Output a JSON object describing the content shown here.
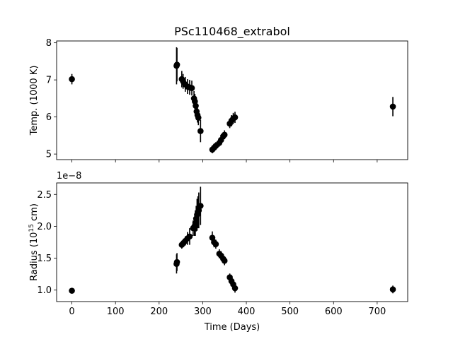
{
  "chart_data": {
    "type": "scatter",
    "title": "PSc110468_extrabol",
    "xlabel": "Time (Days)",
    "xlim": [
      -35,
      770
    ],
    "xticks": [
      0,
      100,
      200,
      300,
      400,
      500,
      600,
      700
    ],
    "panels": [
      {
        "id": "temperature",
        "ylabel_prefix": "Temp. (1000 K)",
        "ylabel_parts": null,
        "ylim": [
          4.85,
          8.05
        ],
        "yticks": [
          5,
          6,
          7,
          8
        ],
        "tick_decimals": 0,
        "offset_text": "",
        "color": "#000000",
        "points": [
          {
            "x": 0,
            "y": 7.02,
            "err": 0.14
          },
          {
            "x": 240,
            "y": 7.38,
            "err": 0.5
          },
          {
            "x": 241,
            "y": 7.41,
            "err": 0.45
          },
          {
            "x": 252,
            "y": 7.02,
            "err": 0.22
          },
          {
            "x": 255,
            "y": 6.96,
            "err": 0.2
          },
          {
            "x": 260,
            "y": 6.88,
            "err": 0.2
          },
          {
            "x": 265,
            "y": 6.82,
            "err": 0.2
          },
          {
            "x": 270,
            "y": 6.8,
            "err": 0.2
          },
          {
            "x": 275,
            "y": 6.78,
            "err": 0.2
          },
          {
            "x": 280,
            "y": 6.5,
            "err": 0.2
          },
          {
            "x": 282,
            "y": 6.42,
            "err": 0.2
          },
          {
            "x": 284,
            "y": 6.3,
            "err": 0.2
          },
          {
            "x": 286,
            "y": 6.15,
            "err": 0.2
          },
          {
            "x": 288,
            "y": 6.05,
            "err": 0.2
          },
          {
            "x": 290,
            "y": 5.98,
            "err": 0.2
          },
          {
            "x": 295,
            "y": 5.62,
            "err": 0.3
          },
          {
            "x": 322,
            "y": 5.12,
            "err": 0.1
          },
          {
            "x": 326,
            "y": 5.17,
            "err": 0.1
          },
          {
            "x": 330,
            "y": 5.22,
            "err": 0.1
          },
          {
            "x": 338,
            "y": 5.3,
            "err": 0.1
          },
          {
            "x": 342,
            "y": 5.38,
            "err": 0.1
          },
          {
            "x": 347,
            "y": 5.48,
            "err": 0.1
          },
          {
            "x": 350,
            "y": 5.52,
            "err": 0.12
          },
          {
            "x": 362,
            "y": 5.82,
            "err": 0.12
          },
          {
            "x": 366,
            "y": 5.9,
            "err": 0.15
          },
          {
            "x": 370,
            "y": 5.96,
            "err": 0.15
          },
          {
            "x": 374,
            "y": 5.99,
            "err": 0.15
          },
          {
            "x": 736,
            "y": 6.28,
            "err": 0.26
          }
        ]
      },
      {
        "id": "radius",
        "ylabel_prefix": "Radius (10",
        "ylabel_parts": {
          "sup": "15",
          "suffix": " cm)"
        },
        "ylim": [
          0.82,
          2.68
        ],
        "yticks": [
          1.0,
          1.5,
          2.0,
          2.5
        ],
        "tick_decimals": 1,
        "offset_text": "1e−8",
        "color": "#000000",
        "points": [
          {
            "x": 0,
            "y": 0.99,
            "err": 0.03
          },
          {
            "x": 240,
            "y": 1.41,
            "err": 0.15
          },
          {
            "x": 241,
            "y": 1.44,
            "err": 0.14
          },
          {
            "x": 252,
            "y": 1.71,
            "err": 0.06
          },
          {
            "x": 256,
            "y": 1.74,
            "err": 0.06
          },
          {
            "x": 260,
            "y": 1.77,
            "err": 0.07
          },
          {
            "x": 265,
            "y": 1.81,
            "err": 0.1
          },
          {
            "x": 270,
            "y": 1.84,
            "err": 0.13
          },
          {
            "x": 278,
            "y": 1.97,
            "err": 0.12
          },
          {
            "x": 281,
            "y": 2.0,
            "err": 0.15
          },
          {
            "x": 283,
            "y": 2.05,
            "err": 0.2
          },
          {
            "x": 285,
            "y": 2.12,
            "err": 0.2
          },
          {
            "x": 287,
            "y": 2.18,
            "err": 0.25
          },
          {
            "x": 289,
            "y": 2.22,
            "err": 0.25
          },
          {
            "x": 291,
            "y": 2.25,
            "err": 0.28
          },
          {
            "x": 295,
            "y": 2.32,
            "err": 0.3
          },
          {
            "x": 322,
            "y": 1.82,
            "err": 0.1
          },
          {
            "x": 326,
            "y": 1.75,
            "err": 0.08
          },
          {
            "x": 330,
            "y": 1.72,
            "err": 0.07
          },
          {
            "x": 338,
            "y": 1.57,
            "err": 0.07
          },
          {
            "x": 342,
            "y": 1.54,
            "err": 0.07
          },
          {
            "x": 347,
            "y": 1.49,
            "err": 0.07
          },
          {
            "x": 350,
            "y": 1.46,
            "err": 0.07
          },
          {
            "x": 362,
            "y": 1.2,
            "err": 0.06
          },
          {
            "x": 366,
            "y": 1.14,
            "err": 0.06
          },
          {
            "x": 370,
            "y": 1.09,
            "err": 0.07
          },
          {
            "x": 374,
            "y": 1.03,
            "err": 0.07
          },
          {
            "x": 736,
            "y": 1.01,
            "err": 0.06
          }
        ]
      }
    ]
  }
}
